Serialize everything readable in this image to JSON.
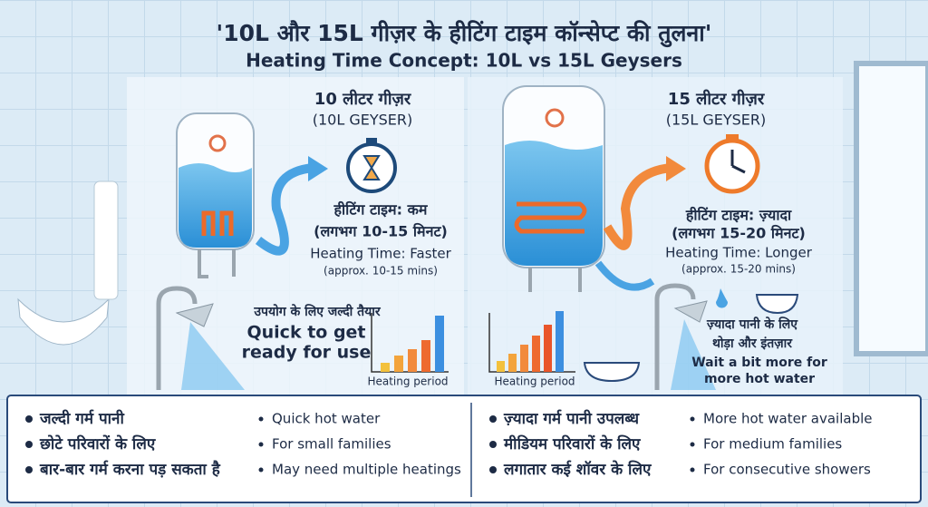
{
  "title": "'10L और 15L गीज़र के हीटिंग टाइम कॉन्सेप्ट की तुलना'",
  "subtitle": "Heating Time Concept: 10L vs 15L Geysers",
  "left_panel": {
    "heading": "10 लीटर गीज़र",
    "subheading": "(10L GEYSER)",
    "time_hi": "हीटिंग टाइम: कम",
    "time_hi_approx": "(लगभग 10-15 मिनट)",
    "time_en": "Heating Time: Faster",
    "time_en_approx": "(approx. 10-15 mins)",
    "note_hi": [
      "उपयोग के लिए जल्दी तैयार"
    ],
    "note_en": [
      "Quick to get",
      "ready for use"
    ],
    "chart_label": "Heating period"
  },
  "right_panel": {
    "heading": "15 लीटर गीज़र",
    "subheading": "(15L GEYSER)",
    "time_hi": "हीटिंग टाइम: ज़्यादा",
    "time_hi_approx": "(लगभग 15-20 मिनट)",
    "time_en": "Heating Time: Longer",
    "time_en_approx": "(approx. 15-20 mins)",
    "note_hi": [
      "ज़्यादा पानी के लिए",
      "थोड़ा और इंतज़ार"
    ],
    "note_en": [
      "Wait a bit more for",
      "more hot water"
    ],
    "chart_label": "Heating period"
  },
  "bottom": {
    "left_hi": [
      "जल्दी गर्म पानी",
      "छोटे परिवारों के लिए",
      "बार-बार गर्म करना पड़ सकता है"
    ],
    "left_en": [
      "Quick hot water",
      "For small families",
      "May need multiple heatings"
    ],
    "right_hi": [
      "ज़्यादा गर्म पानी उपलब्ध",
      "मीडियम परिवारों के लिए",
      "लगातार कई शॉवर के लिए"
    ],
    "right_en": [
      "More hot water available",
      "For medium families",
      "For consecutive showers"
    ]
  }
}
